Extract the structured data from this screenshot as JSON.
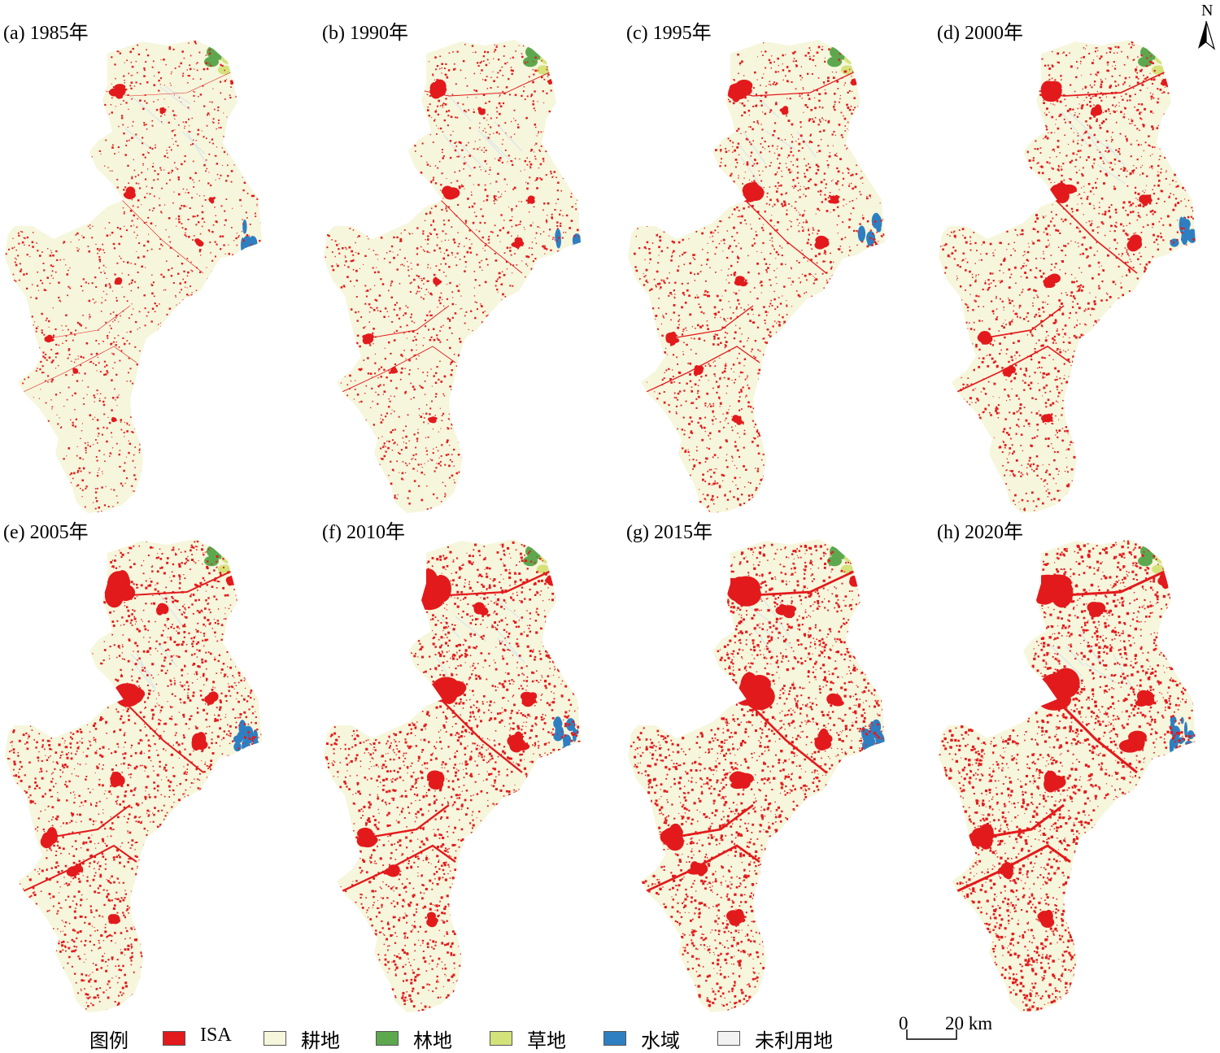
{
  "panels": [
    {
      "label": "(a) 1985年",
      "year": 1985
    },
    {
      "label": "(b) 1990年",
      "year": 1990
    },
    {
      "label": "(c) 1995年",
      "year": 1995
    },
    {
      "label": "(d) 2000年",
      "year": 2000
    },
    {
      "label": "(e) 2005年",
      "year": 2005
    },
    {
      "label": "(f) 2010年",
      "year": 2010
    },
    {
      "label": "(g) 2015年",
      "year": 2015
    },
    {
      "label": "(h) 2020年",
      "year": 2020
    }
  ],
  "north_label": "N",
  "legend": {
    "title": "图例",
    "items": [
      {
        "label": "ISA",
        "color": "#e31a1c"
      },
      {
        "label": "耕地",
        "color": "#f6f6dc"
      },
      {
        "label": "林地",
        "color": "#5da84f"
      },
      {
        "label": "草地",
        "color": "#d4e27a"
      },
      {
        "label": "水域",
        "color": "#2e7fc1"
      },
      {
        "label": "未利用地",
        "color": "#f2f2f2"
      }
    ]
  },
  "scale": {
    "start": "0",
    "end": "20 km"
  }
}
